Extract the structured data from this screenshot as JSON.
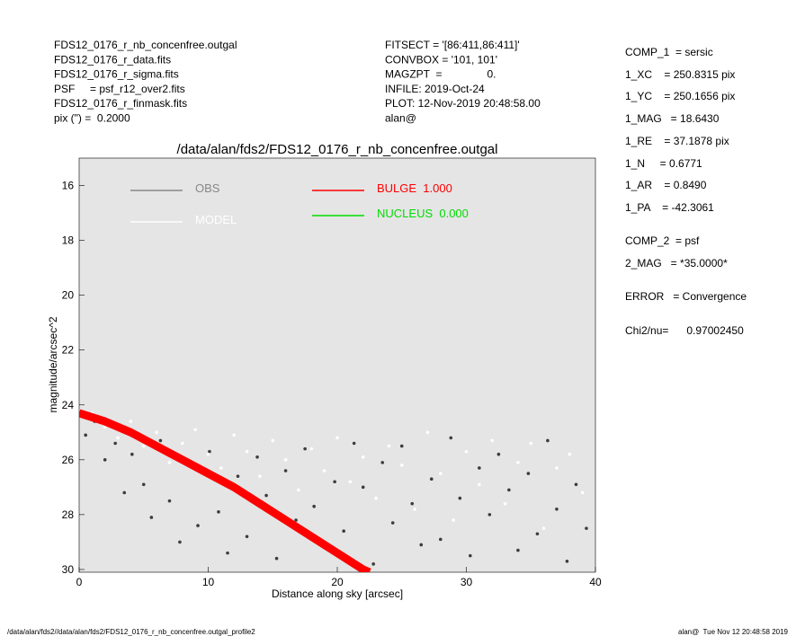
{
  "header": {
    "left": [
      "FDS12_0176_r_nb_concenfree.outgal",
      "FDS12_0176_r_data.fits",
      "FDS12_0176_r_sigma.fits",
      "PSF     = psf_r12_over2.fits",
      "FDS12_0176_r_finmask.fits",
      "pix (\") =  0.2000"
    ],
    "middle": [
      "FITSECT = '[86:411,86:411]'",
      "CONVBOX = '101, 101'",
      "MAGZPT  =               0.",
      "INFILE: 2019-Oct-24",
      "PLOT: 12-Nov-2019 20:48:58.00",
      "alan@"
    ]
  },
  "params": [
    "COMP_1  = sersic",
    "1_XC    = 250.8315 pix",
    "1_YC    = 250.1656 pix",
    "1_MAG   = 18.6430",
    "1_RE    = 37.1878 pix",
    "1_N     = 0.6771",
    "1_AR    = 0.8490",
    "1_PA    = -42.3061",
    "COMP_2  = psf",
    "2_MAG   = *35.0000*",
    "ERROR   = Convergence",
    "Chi2/nu=      0.97002450"
  ],
  "footer": {
    "left": "/data/alan/fds2//data/alan/fds2/FDS12_0176_r_nb_concenfree.outgal_profile2",
    "right": "alan@  Tue Nov 12 20:48:58 2019"
  },
  "chart_data": {
    "type": "scatter",
    "title": "/data/alan/fds2/FDS12_0176_r_nb_concenfree.outgal",
    "x_label": "Distance along sky [arcsec]",
    "y_label": "magnitude/arcsec^2",
    "xlim": [
      0,
      40
    ],
    "ylim": [
      15,
      30.1
    ],
    "y_inverted": true,
    "xticks": [
      0,
      10,
      20,
      30,
      40
    ],
    "yticks": [
      16,
      18,
      20,
      22,
      24,
      26,
      28,
      30
    ],
    "background": "#e5e5e5",
    "series": [
      {
        "name": "OBS",
        "color": "#888888",
        "marker_color": "#3c3c3c",
        "style": "points",
        "x": [
          0.5,
          1.2,
          2.0,
          2.8,
          3.5,
          4.1,
          5.0,
          5.6,
          6.3,
          7.0,
          7.8,
          8.5,
          9.2,
          10.1,
          10.8,
          11.5,
          12.3,
          13.0,
          13.8,
          14.5,
          15.3,
          16.0,
          16.8,
          17.5,
          18.2,
          19.0,
          19.8,
          20.5,
          21.3,
          22.0,
          22.8,
          23.5,
          24.3,
          25.0,
          25.8,
          26.5,
          27.3,
          28.0,
          28.8,
          29.5,
          30.3,
          31.0,
          31.8,
          32.5,
          33.3,
          34.0,
          34.8,
          35.5,
          36.3,
          37.0,
          37.8,
          38.5,
          39.3
        ],
        "values": [
          25.1,
          24.6,
          26.0,
          25.4,
          27.2,
          25.8,
          26.9,
          28.1,
          25.3,
          27.5,
          29.0,
          26.2,
          28.4,
          25.7,
          27.9,
          29.4,
          26.6,
          28.8,
          25.9,
          27.3,
          29.6,
          26.4,
          28.2,
          25.6,
          27.7,
          29.2,
          26.8,
          28.6,
          25.4,
          27.0,
          29.8,
          26.1,
          28.3,
          25.5,
          27.6,
          29.1,
          26.7,
          28.9,
          25.2,
          27.4,
          29.5,
          26.3,
          28.0,
          25.8,
          27.1,
          29.3,
          26.5,
          28.7,
          25.3,
          27.8,
          29.7,
          26.9,
          28.5
        ]
      },
      {
        "name": "MODEL",
        "color": "#ffffff",
        "marker_color": "#ffffff",
        "style": "points",
        "x": [
          1,
          2,
          3,
          4,
          5,
          6,
          7,
          8,
          9,
          10,
          11,
          12,
          13,
          14,
          15,
          16,
          17,
          18,
          19,
          20,
          21,
          22,
          23,
          24,
          25,
          26,
          27,
          28,
          29,
          30,
          31,
          32,
          33,
          34,
          35,
          36,
          37,
          38,
          39
        ],
        "values": [
          24.3,
          24.8,
          25.2,
          24.6,
          25.5,
          25.0,
          26.1,
          25.4,
          24.9,
          25.8,
          26.3,
          25.1,
          25.7,
          26.6,
          25.3,
          26.0,
          27.1,
          25.6,
          26.4,
          25.2,
          26.8,
          25.9,
          27.4,
          25.5,
          26.2,
          27.8,
          25.0,
          26.5,
          28.2,
          25.7,
          26.9,
          25.3,
          27.6,
          26.1,
          25.4,
          28.5,
          26.3,
          25.8,
          27.2
        ]
      },
      {
        "name": "BULGE  1.000",
        "color": "#ff0000",
        "style": "band",
        "x": [
          0,
          2,
          4,
          6,
          8,
          10,
          12,
          14,
          16,
          18,
          20,
          22,
          22.5
        ],
        "values": [
          24.3,
          24.6,
          25.0,
          25.5,
          26.0,
          26.5,
          27.0,
          27.6,
          28.2,
          28.8,
          29.4,
          30.0,
          30.1
        ]
      },
      {
        "name": "NUCLEUS  0.000",
        "color": "#00dd00",
        "style": "band",
        "x": [],
        "values": []
      }
    ]
  }
}
